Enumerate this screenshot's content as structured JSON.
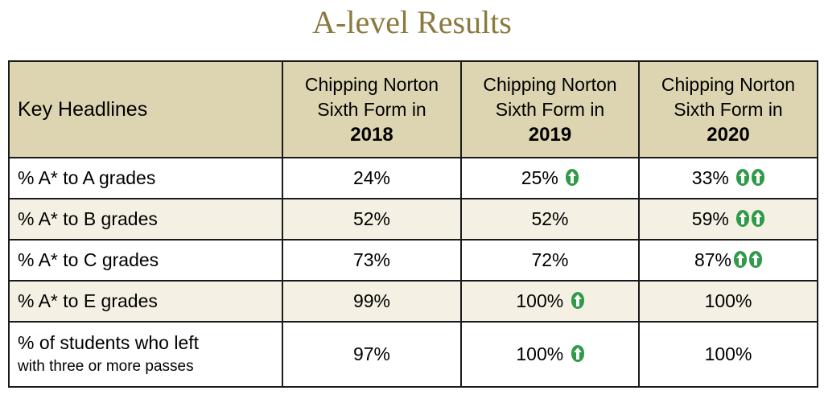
{
  "title": "A-level Results",
  "header": {
    "label": "Key Headlines",
    "columns": [
      {
        "line1": "Chipping Norton",
        "line2": "Sixth Form in",
        "year": "2018"
      },
      {
        "line1": "Chipping Norton",
        "line2": "Sixth Form in",
        "year": "2019"
      },
      {
        "line1": "Chipping Norton",
        "line2": "Sixth Form in",
        "year": "2020"
      }
    ]
  },
  "rows": [
    {
      "label": "% A* to A grades",
      "values": [
        "24%",
        "25%",
        "33%"
      ],
      "arrows": [
        0,
        1,
        2
      ]
    },
    {
      "label": "% A* to B grades",
      "values": [
        "52%",
        "52%",
        "59%"
      ],
      "arrows": [
        0,
        0,
        2
      ]
    },
    {
      "label": "% A* to C grades",
      "values": [
        "73%",
        "72%",
        "87%"
      ],
      "arrows": [
        0,
        0,
        2
      ]
    },
    {
      "label": "% A* to E grades",
      "values": [
        "99%",
        "100%",
        "100%"
      ],
      "arrows": [
        0,
        1,
        0
      ]
    },
    {
      "label": "% of students who left",
      "sublabel": "with three or more passes",
      "values": [
        "97%",
        "100%",
        "100%"
      ],
      "arrows": [
        0,
        1,
        0
      ]
    }
  ],
  "colors": {
    "title": "#8a7a3e",
    "header_bg": "#ddd5b1",
    "shaded_row_bg": "#f4f1e4",
    "arrow": "#2f9a47"
  },
  "icons": {
    "increase": "up-arrow-icon"
  }
}
